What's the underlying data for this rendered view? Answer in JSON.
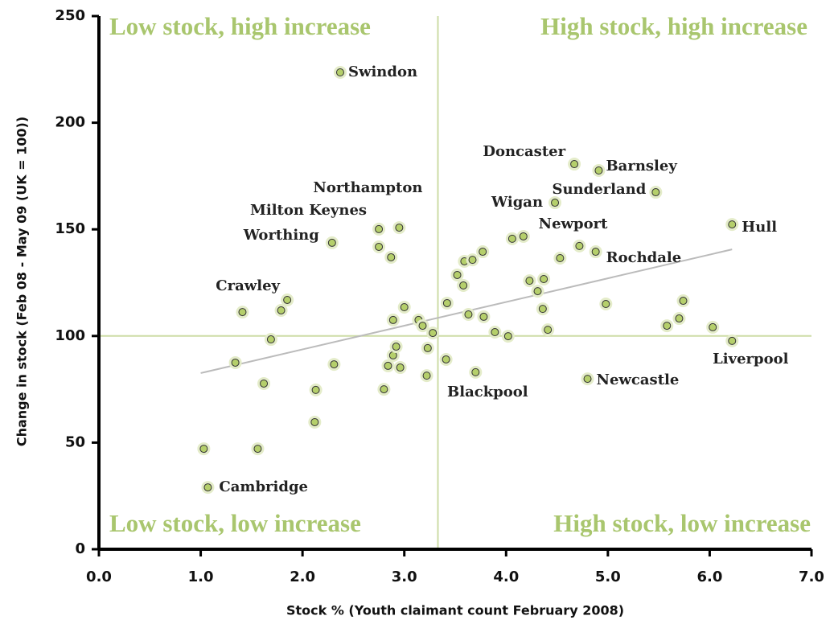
{
  "chart_data": {
    "type": "scatter",
    "x_label": "Stock % (Youth claimant count February 2008)",
    "y_label": "Change in stock (Feb 08 - May 09 (UK = 100))",
    "quadrant_labels": [
      "Low stock, high increase",
      "High stock, high increase",
      "Low stock, low increase",
      "High stock, low increase"
    ],
    "quadrant_x": 3.33,
    "quadrant_y": 100,
    "xlim": [
      0,
      7
    ],
    "ylim": [
      0,
      250
    ],
    "xticks": [
      {
        "value": 0,
        "label": "0.0"
      },
      {
        "value": 1,
        "label": "1.0"
      },
      {
        "value": 2,
        "label": "2.0"
      },
      {
        "value": 3,
        "label": "3.0"
      },
      {
        "value": 4,
        "label": "4.0"
      },
      {
        "value": 5,
        "label": "5.0"
      },
      {
        "value": 6,
        "label": "6.0"
      },
      {
        "value": 7,
        "label": "7.0"
      }
    ],
    "yticks": [
      0,
      50,
      100,
      150,
      200,
      250
    ],
    "color": "#b5cf6b",
    "x": [
      2.37,
      4.67,
      4.91,
      5.47,
      4.48,
      6.22,
      4.72,
      4.88,
      2.95,
      2.75,
      2.29,
      1.85,
      6.22,
      4.8,
      3.7,
      1.07,
      1.03,
      1.56,
      2.12,
      2.13,
      1.62,
      1.34,
      1.69,
      1.41,
      1.79,
      2.31,
      2.8,
      2.84,
      2.89,
      2.92,
      2.96,
      3.0,
      2.89,
      2.75,
      2.87,
      3.14,
      3.18,
      3.28,
      3.23,
      3.22,
      3.41,
      3.42,
      3.52,
      3.58,
      3.59,
      3.67,
      3.77,
      3.63,
      3.78,
      3.89,
      4.02,
      4.06,
      4.17,
      4.53,
      4.23,
      4.31,
      4.37,
      4.36,
      4.41,
      4.98,
      5.58,
      5.7,
      5.74,
      6.03
    ],
    "values": [
      223.6,
      180.6,
      177.6,
      167.4,
      162.5,
      152.3,
      142.2,
      139.5,
      150.8,
      150.1,
      143.7,
      116.9,
      97.7,
      79.9,
      83.0,
      29.0,
      47.1,
      47.1,
      59.6,
      74.7,
      77.7,
      87.5,
      98.4,
      111.2,
      112.0,
      86.7,
      75.0,
      86.0,
      90.9,
      95.0,
      85.2,
      113.5,
      107.5,
      141.8,
      136.9,
      107.5,
      104.8,
      101.4,
      94.3,
      81.4,
      89.0,
      115.4,
      128.6,
      123.7,
      135.0,
      135.7,
      139.5,
      110.1,
      109.0,
      101.8,
      99.9,
      145.6,
      146.7,
      136.5,
      125.9,
      121.0,
      126.7,
      112.7,
      102.9,
      115.0,
      104.8,
      108.2,
      116.5,
      104.1
    ],
    "point_labels": [
      "Swindon",
      "Doncaster",
      "Barnsley",
      "Sunderland",
      "Wigan",
      "Hull",
      "Newport",
      "Rochdale",
      "Northampton",
      "Milton Keynes",
      "Worthing",
      "Crawley",
      "Liverpool",
      "Newcastle",
      "Blackpool",
      "Cambridge",
      null,
      null,
      null,
      null,
      null,
      null,
      null,
      null,
      null,
      null,
      null,
      null,
      null,
      null,
      null,
      null,
      null,
      null,
      null,
      null,
      null,
      null,
      null,
      null,
      null,
      null,
      null,
      null,
      null,
      null,
      null,
      null,
      null,
      null,
      null,
      null,
      null,
      null,
      null,
      null,
      null,
      null,
      null,
      null,
      null,
      null,
      null,
      null
    ],
    "trendline": {
      "x": [
        1.0,
        6.22
      ],
      "values": [
        82.6,
        140.6
      ]
    }
  }
}
